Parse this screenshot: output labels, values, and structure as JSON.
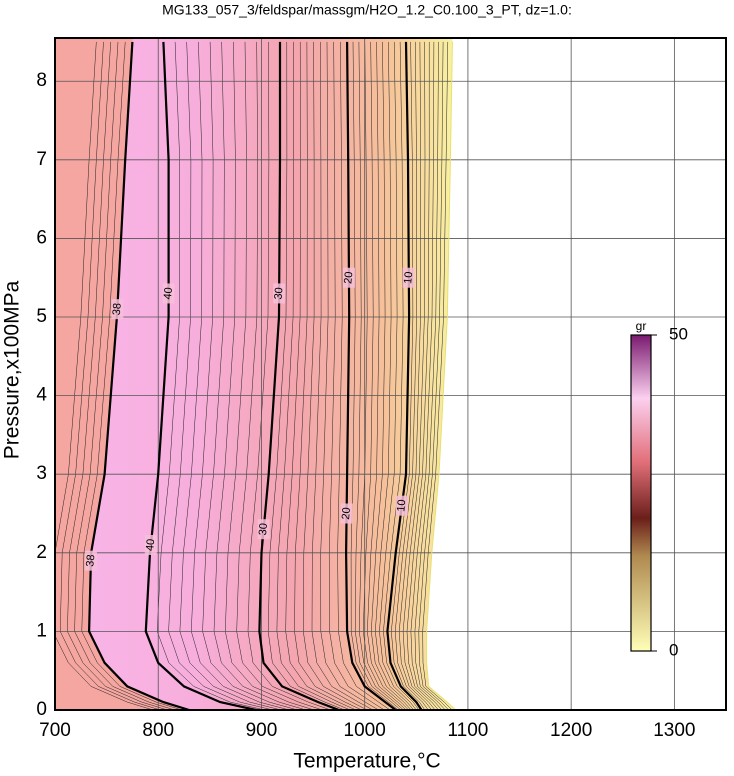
{
  "chart_data": {
    "type": "contour",
    "title": "MG133_057_3/feldspar/massgm/H2O_1.2_C0.100_3_PT, dz=1.0:",
    "x_label": "Temperature,°C",
    "y_label": "Pressure,x100MPa",
    "xlim": [
      700,
      1350
    ],
    "ylim": [
      0,
      8.55
    ],
    "xticks": [
      700,
      800,
      900,
      1000,
      1100,
      1200,
      1300
    ],
    "yticks": [
      0,
      1,
      2,
      3,
      4,
      5,
      6,
      7,
      8
    ],
    "grid": true,
    "pressures": [
      8.5,
      7,
      5,
      3,
      2,
      1,
      0.6,
      0.3,
      0.1,
      0
    ],
    "contours": [
      {
        "level": 38,
        "x": [
          775,
          768,
          760,
          748,
          735,
          733,
          748,
          770,
          805,
          830
        ]
      },
      {
        "level": 40,
        "x": [
          805,
          810,
          810,
          800,
          792,
          788,
          800,
          825,
          860,
          895
        ]
      },
      {
        "level": 30,
        "x": [
          918,
          918,
          917,
          907,
          900,
          898,
          902,
          920,
          955,
          975
        ]
      },
      {
        "level": 20,
        "x": [
          983,
          984,
          985,
          983,
          982,
          983,
          988,
          1000,
          1020,
          1030
        ]
      },
      {
        "level": 10,
        "x": [
          1040,
          1042,
          1043,
          1040,
          1030,
          1022,
          1025,
          1035,
          1050,
          1055
        ]
      },
      {
        "level": 0,
        "x": [
          1085,
          1083,
          1080,
          1072,
          1065,
          1060,
          1060,
          1062,
          1080,
          1088
        ]
      }
    ],
    "colorbar": {
      "label": "gr",
      "clim": [
        0,
        50
      ]
    }
  }
}
